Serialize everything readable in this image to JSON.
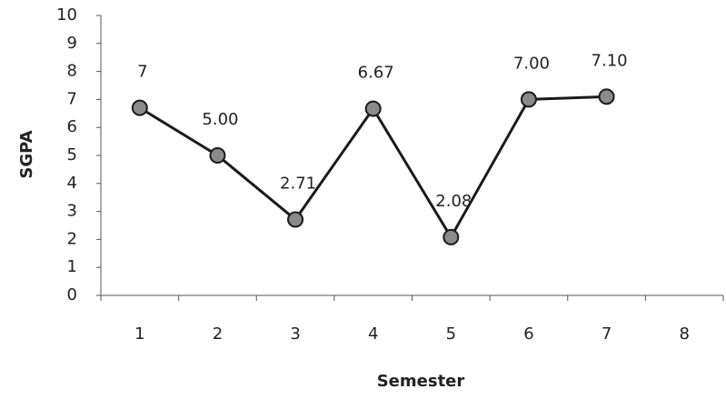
{
  "chart_data": {
    "type": "line",
    "x_label": "Semester",
    "y_label": "SGPA",
    "categories": [
      "1",
      "2",
      "3",
      "4",
      "5",
      "6",
      "7",
      "8"
    ],
    "values": [
      6.7,
      5.0,
      2.71,
      6.67,
      2.08,
      7.0,
      7.1,
      null
    ],
    "value_labels": [
      "7",
      "5.00",
      "2.71",
      "6.67",
      "2.08",
      "7.00",
      "7.10",
      null
    ],
    "color": "#1a1a1a",
    "marker_color": "#8a8a8a",
    "ylim": [
      0,
      10
    ],
    "yticks": [
      0,
      1,
      2,
      3,
      4,
      5,
      6,
      7,
      8,
      9,
      10
    ],
    "grid": false
  }
}
